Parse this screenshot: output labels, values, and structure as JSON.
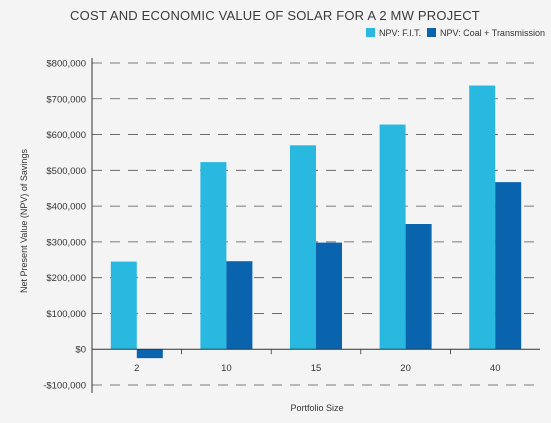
{
  "chart_data": {
    "type": "bar",
    "title": "COST AND ECONOMIC VALUE OF SOLAR FOR A 2 MW PROJECT",
    "xlabel": "Portfolio Size",
    "ylabel": "Net Present Value (NPV) of Savings",
    "categories": [
      "2",
      "10",
      "15",
      "20",
      "40"
    ],
    "series": [
      {
        "name": "NPV: F.I.T.",
        "color": "#29b8e0",
        "values": [
          245000,
          523000,
          570000,
          628000,
          737000
        ]
      },
      {
        "name": "NPV: Coal + Transmission",
        "color": "#0a63ad",
        "values": [
          -25000,
          246000,
          298000,
          350000,
          467000
        ]
      }
    ],
    "ylim": [
      -100000,
      800000
    ],
    "yticks": [
      -100000,
      0,
      100000,
      200000,
      300000,
      400000,
      500000,
      600000,
      700000,
      800000
    ],
    "ytick_labels": [
      "-$100,000",
      "$0",
      "$100,000",
      "$200,000",
      "$300,000",
      "$400,000",
      "$500,000",
      "$600,000",
      "$700,000",
      "$800,000"
    ],
    "grid": "dashed horizontal",
    "legend_position": "top-right"
  }
}
